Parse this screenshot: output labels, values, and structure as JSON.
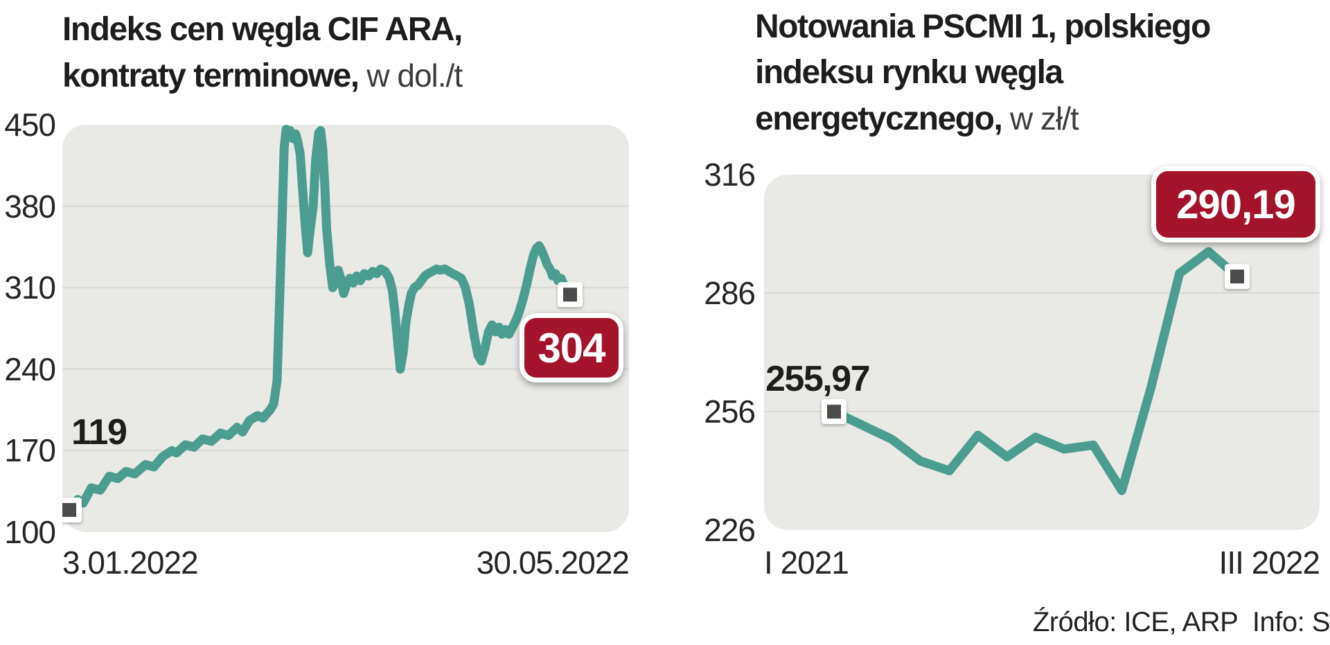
{
  "left_chart": {
    "title_line1": "Indeks cen węgla CIF ARA,",
    "title_line2_bold": "kontraty terminowe,",
    "title_line2_unit": " w dol./t",
    "y_ticks": [
      "450",
      "380",
      "310",
      "240",
      "170",
      "100"
    ],
    "x_tick_start": "3.01.2022",
    "x_tick_end": "30.05.2022",
    "start_value_label": "119",
    "end_badge_label": "304"
  },
  "right_chart": {
    "title_line1": "Notowania PSCMI 1, polskiego",
    "title_line2": "indeksu rynku węgla",
    "title_line3_bold": "energetycznego,",
    "title_line3_unit": " w zł/t",
    "y_ticks": [
      "316",
      "286",
      "256",
      "226"
    ],
    "x_tick_start": "I 2021",
    "x_tick_end": "III 2022",
    "start_value_label": "255,97",
    "end_badge_label": "290,19"
  },
  "page": {
    "source_note": "Źródło: ICE, ARP  Info: S"
  },
  "colors": {
    "line_teal": "#4a9d8f",
    "panel_gray": "#e9e9e6",
    "grid_gray": "#d8d8d4",
    "badge_red": "#a3142c",
    "marker_gray": "#4b4b49",
    "text_dark": "#1d1d1b"
  },
  "chart_data": [
    {
      "type": "line",
      "title": "Indeks cen węgla CIF ARA, kontraty terminowe",
      "unit": "dol./t",
      "ylim": [
        100,
        450
      ],
      "yticks": [
        450,
        380,
        310,
        240,
        170,
        100
      ],
      "gridlines": [
        380,
        310,
        240,
        170
      ],
      "xticks": [
        "3.01.2022",
        "30.05.2022"
      ],
      "first_point": {
        "x": "3.01.2022",
        "value": 119
      },
      "last_point": {
        "x": "30.05.2022",
        "value": 304
      },
      "legend": "none",
      "points": [
        [
          0.0,
          119
        ],
        [
          0.017,
          128
        ],
        [
          0.028,
          125
        ],
        [
          0.044,
          138
        ],
        [
          0.062,
          136
        ],
        [
          0.08,
          148
        ],
        [
          0.097,
          146
        ],
        [
          0.113,
          152
        ],
        [
          0.131,
          150
        ],
        [
          0.152,
          158
        ],
        [
          0.169,
          156
        ],
        [
          0.187,
          165
        ],
        [
          0.205,
          170
        ],
        [
          0.214,
          168
        ],
        [
          0.232,
          175
        ],
        [
          0.249,
          173
        ],
        [
          0.266,
          180
        ],
        [
          0.284,
          178
        ],
        [
          0.302,
          185
        ],
        [
          0.318,
          183
        ],
        [
          0.335,
          190
        ],
        [
          0.346,
          186
        ],
        [
          0.36,
          196
        ],
        [
          0.376,
          200
        ],
        [
          0.387,
          198
        ],
        [
          0.401,
          205
        ],
        [
          0.408,
          210
        ],
        [
          0.415,
          230
        ],
        [
          0.42,
          300
        ],
        [
          0.425,
          370
        ],
        [
          0.429,
          430
        ],
        [
          0.433,
          446
        ],
        [
          0.437,
          440
        ],
        [
          0.441,
          445
        ],
        [
          0.447,
          438
        ],
        [
          0.452,
          442
        ],
        [
          0.456,
          436
        ],
        [
          0.461,
          425
        ],
        [
          0.465,
          400
        ],
        [
          0.47,
          370
        ],
        [
          0.476,
          340
        ],
        [
          0.481,
          360
        ],
        [
          0.487,
          380
        ],
        [
          0.492,
          420
        ],
        [
          0.498,
          443
        ],
        [
          0.502,
          445
        ],
        [
          0.506,
          430
        ],
        [
          0.51,
          400
        ],
        [
          0.514,
          360
        ],
        [
          0.52,
          330
        ],
        [
          0.526,
          310
        ],
        [
          0.531,
          315
        ],
        [
          0.537,
          325
        ],
        [
          0.542,
          318
        ],
        [
          0.548,
          305
        ],
        [
          0.553,
          312
        ],
        [
          0.56,
          318
        ],
        [
          0.567,
          314
        ],
        [
          0.574,
          320
        ],
        [
          0.581,
          316
        ],
        [
          0.589,
          322
        ],
        [
          0.598,
          320
        ],
        [
          0.606,
          324
        ],
        [
          0.614,
          322
        ],
        [
          0.622,
          326
        ],
        [
          0.631,
          324
        ],
        [
          0.639,
          318
        ],
        [
          0.645,
          308
        ],
        [
          0.65,
          290
        ],
        [
          0.656,
          262
        ],
        [
          0.661,
          240
        ],
        [
          0.667,
          255
        ],
        [
          0.672,
          280
        ],
        [
          0.678,
          295
        ],
        [
          0.683,
          305
        ],
        [
          0.689,
          310
        ],
        [
          0.696,
          312
        ],
        [
          0.703,
          316
        ],
        [
          0.71,
          320
        ],
        [
          0.716,
          322
        ],
        [
          0.725,
          324
        ],
        [
          0.733,
          326
        ],
        [
          0.741,
          325
        ],
        [
          0.75,
          326
        ],
        [
          0.758,
          324
        ],
        [
          0.766,
          322
        ],
        [
          0.775,
          320
        ],
        [
          0.783,
          318
        ],
        [
          0.791,
          310
        ],
        [
          0.799,
          295
        ],
        [
          0.808,
          270
        ],
        [
          0.816,
          252
        ],
        [
          0.823,
          247
        ],
        [
          0.83,
          258
        ],
        [
          0.837,
          272
        ],
        [
          0.844,
          278
        ],
        [
          0.851,
          272
        ],
        [
          0.858,
          276
        ],
        [
          0.864,
          270
        ],
        [
          0.871,
          274
        ],
        [
          0.878,
          270
        ],
        [
          0.885,
          276
        ],
        [
          0.892,
          282
        ],
        [
          0.899,
          290
        ],
        [
          0.906,
          300
        ],
        [
          0.913,
          312
        ],
        [
          0.92,
          326
        ],
        [
          0.927,
          338
        ],
        [
          0.933,
          344
        ],
        [
          0.938,
          346
        ],
        [
          0.943,
          342
        ],
        [
          0.949,
          336
        ],
        [
          0.954,
          330
        ],
        [
          0.96,
          326
        ],
        [
          0.965,
          320
        ],
        [
          0.971,
          322
        ],
        [
          0.976,
          316
        ],
        [
          0.982,
          318
        ],
        [
          0.988,
          312
        ],
        [
          0.993,
          308
        ],
        [
          1.0,
          304
        ]
      ]
    },
    {
      "type": "line",
      "title": "Notowania PSCMI 1, polskiego indeksu rynku węgla energetycznego",
      "unit": "zł/t",
      "ylim": [
        226,
        316
      ],
      "yticks": [
        316,
        286,
        256,
        226
      ],
      "gridlines": [
        286,
        256
      ],
      "xticks": [
        "I 2021",
        "III 2022"
      ],
      "first_point": {
        "x": "I 2021",
        "value": 255.97
      },
      "last_point": {
        "x": "III 2022",
        "value": 290.19
      },
      "legend": "none",
      "points": [
        [
          0.0,
          255.97
        ],
        [
          0.071,
          252.5
        ],
        [
          0.143,
          249
        ],
        [
          0.214,
          243.5
        ],
        [
          0.286,
          241
        ],
        [
          0.357,
          250
        ],
        [
          0.429,
          244.5
        ],
        [
          0.5,
          249.5
        ],
        [
          0.571,
          246.5
        ],
        [
          0.643,
          247.5
        ],
        [
          0.714,
          236
        ],
        [
          0.786,
          262
        ],
        [
          0.857,
          291
        ],
        [
          0.929,
          296.5
        ],
        [
          1.0,
          290.19
        ]
      ]
    }
  ]
}
